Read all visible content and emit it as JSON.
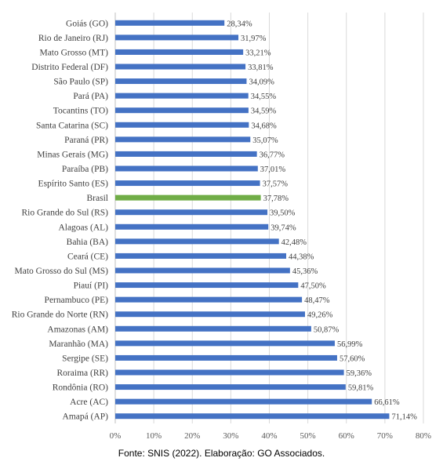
{
  "chart_data": {
    "type": "bar",
    "orientation": "horizontal",
    "categories": [
      "Goiás (GO)",
      "Rio de Janeiro (RJ)",
      "Mato Grosso (MT)",
      "Distrito Federal (DF)",
      "São Paulo (SP)",
      "Pará (PA)",
      "Tocantins (TO)",
      "Santa Catarina (SC)",
      "Paraná (PR)",
      "Minas Gerais (MG)",
      "Paraíba (PB)",
      "Espírito Santo (ES)",
      "Brasil",
      "Rio Grande do Sul (RS)",
      "Alagoas (AL)",
      "Bahia (BA)",
      "Ceará (CE)",
      "Mato Grosso do Sul (MS)",
      "Piauí (PI)",
      "Pernambuco (PE)",
      "Rio Grande do Norte (RN)",
      "Amazonas (AM)",
      "Maranhão (MA)",
      "Sergipe (SE)",
      "Roraima (RR)",
      "Rondônia (RO)",
      "Acre (AC)",
      "Amapá (AP)"
    ],
    "values": [
      28.34,
      31.97,
      33.21,
      33.81,
      34.09,
      34.55,
      34.59,
      34.68,
      35.07,
      36.77,
      37.01,
      37.57,
      37.78,
      39.5,
      39.74,
      42.48,
      44.38,
      45.36,
      47.5,
      48.47,
      49.26,
      50.87,
      56.99,
      57.6,
      59.36,
      59.81,
      66.61,
      71.14
    ],
    "value_labels": [
      "28,34%",
      "31,97%",
      "33,21%",
      "33,81%",
      "34,09%",
      "34,55%",
      "34,59%",
      "34,68%",
      "35,07%",
      "36,77%",
      "37,01%",
      "37,57%",
      "37,78%",
      "39,50%",
      "39,74%",
      "42,48%",
      "44,38%",
      "45,36%",
      "47,50%",
      "48,47%",
      "49,26%",
      "50,87%",
      "56,99%",
      "57,60%",
      "59,36%",
      "59,81%",
      "66,61%",
      "71,14%"
    ],
    "highlight": "Brasil",
    "xlim": [
      0,
      80
    ],
    "xticks": [
      0,
      10,
      20,
      30,
      40,
      50,
      60,
      70,
      80
    ],
    "xtick_labels": [
      "0%",
      "10%",
      "20%",
      "30%",
      "40%",
      "50%",
      "60%",
      "70%",
      "80%"
    ],
    "grid": true,
    "colors": {
      "bar": "#4472c4",
      "highlight": "#70ad47",
      "grid": "#d9d9d9",
      "text": "#404040"
    }
  },
  "source": "Fonte: SNIS (2022). Elaboração: GO Associados."
}
